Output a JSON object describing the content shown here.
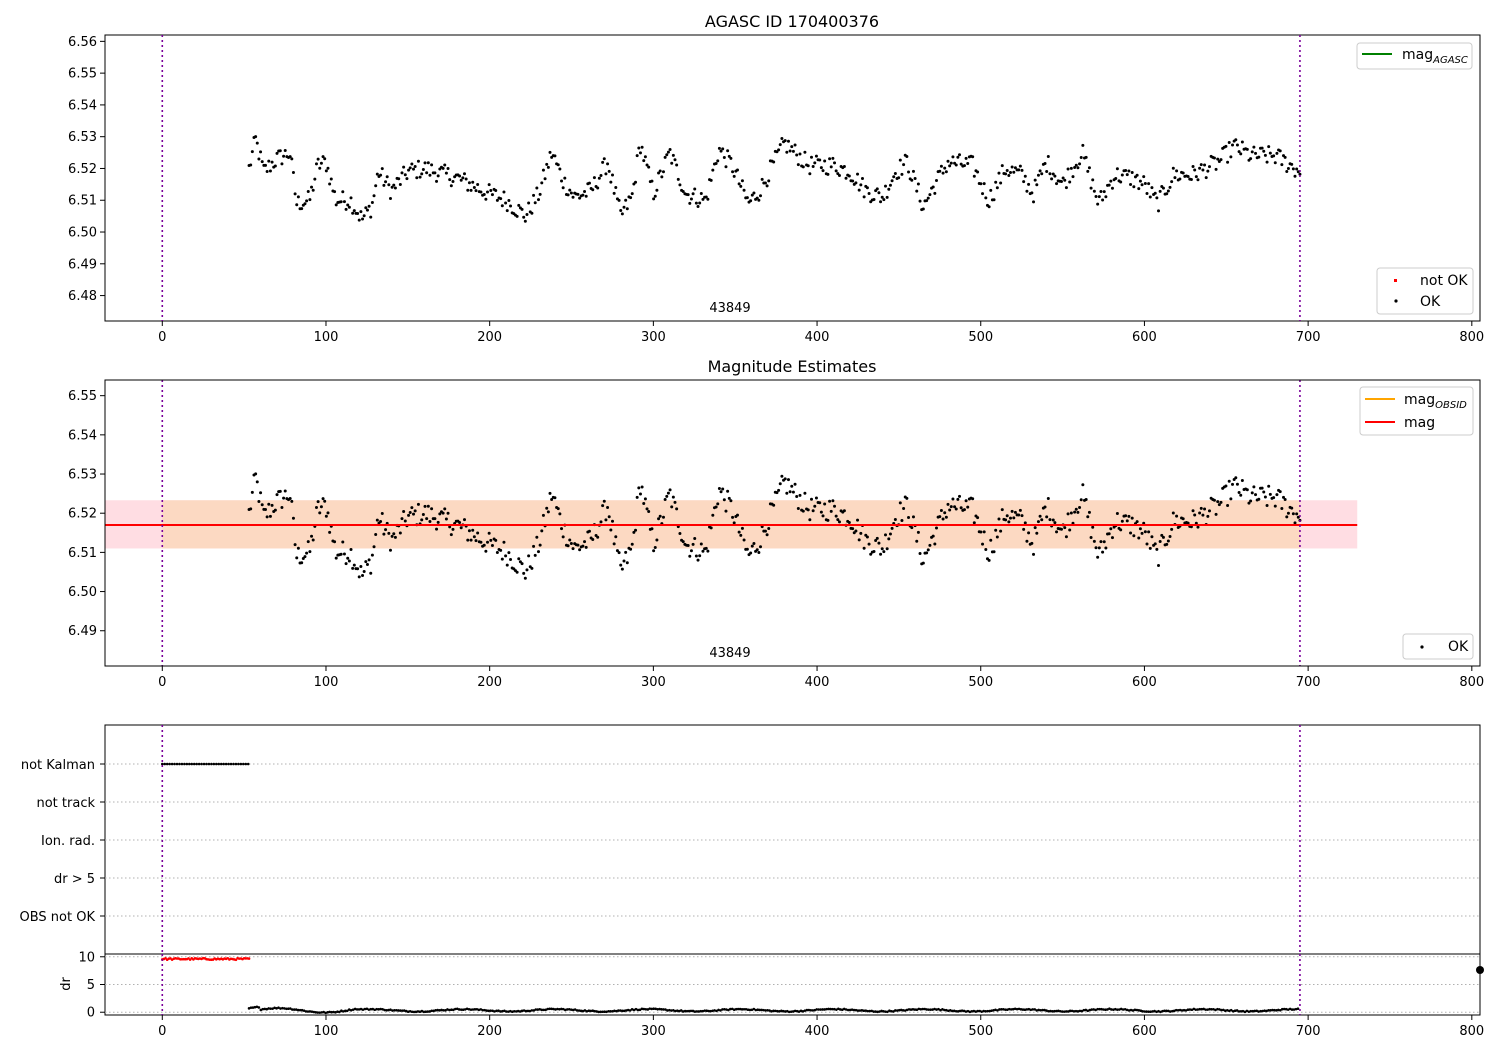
{
  "chart_data": [
    {
      "type": "scatter",
      "title": "AGASC ID 170400376",
      "xlim": [
        -35,
        805
      ],
      "ylim": [
        6.472,
        6.562
      ],
      "xticks": [
        "0",
        "100",
        "200",
        "300",
        "400",
        "500",
        "600",
        "700",
        "800"
      ],
      "yticks": [
        "6.48",
        "6.49",
        "6.50",
        "6.51",
        "6.52",
        "6.53",
        "6.54",
        "6.55",
        "6.56"
      ],
      "vlines": [
        0,
        695
      ],
      "annotation": {
        "text": "43849",
        "x": 347
      },
      "legend_lines": [
        {
          "label": "mag",
          "sub": "AGASC",
          "color": "#008000"
        }
      ],
      "legend_points": [
        {
          "label": "not OK",
          "color": "#ff0000"
        },
        {
          "label": "OK",
          "color": "#000000"
        }
      ],
      "series": [
        {
          "name": "OK",
          "x_range": [
            53,
            695
          ],
          "n": 640,
          "color": "#000000"
        }
      ]
    },
    {
      "type": "scatter",
      "title": "Magnitude Estimates",
      "xlim": [
        -35,
        805
      ],
      "ylim": [
        6.481,
        6.554
      ],
      "xticks": [
        "0",
        "100",
        "200",
        "300",
        "400",
        "500",
        "600",
        "700",
        "800"
      ],
      "yticks": [
        "6.49",
        "6.50",
        "6.51",
        "6.52",
        "6.53",
        "6.54",
        "6.55"
      ],
      "vlines": [
        0,
        695
      ],
      "annotation": {
        "text": "43849",
        "x": 347
      },
      "mag": 6.517,
      "band_outer": {
        "x": [
          -35,
          730
        ],
        "y": [
          6.511,
          6.5233
        ],
        "color": "#ffdde3"
      },
      "band_inner": {
        "x": [
          0,
          695
        ],
        "y": [
          6.511,
          6.5233
        ],
        "color": "#fcd9c2"
      },
      "legend_lines": [
        {
          "label": "mag",
          "sub": "OBSID",
          "color": "#ffa500"
        },
        {
          "label": "mag",
          "sub": "",
          "color": "#ff0000"
        }
      ],
      "legend_points": [
        {
          "label": "OK",
          "color": "#000000"
        }
      ],
      "series": [
        {
          "name": "OK",
          "x_range": [
            53,
            695
          ],
          "n": 640,
          "color": "#000000"
        }
      ]
    },
    {
      "type": "scatter",
      "xlim": [
        -35,
        805
      ],
      "flag_labels": [
        "not Kalman",
        "not track",
        "Ion. rad.",
        "dr > 5",
        "OBS not OK"
      ],
      "flags": {
        "not Kalman": [
          0,
          53
        ]
      },
      "vlines": [
        0,
        695
      ]
    },
    {
      "type": "line",
      "ylabel": "dr",
      "xlim": [
        -35,
        805
      ],
      "ylim": [
        -0.5,
        10.5
      ],
      "xticks": [
        "0",
        "100",
        "200",
        "300",
        "400",
        "500",
        "600",
        "700",
        "800"
      ],
      "yticks": [
        "0",
        "5",
        "10"
      ],
      "vlines": [
        0,
        695
      ],
      "segments": [
        {
          "name": "not OK",
          "x_range": [
            0,
            53
          ],
          "value": 9.6,
          "color": "#ff0000"
        },
        {
          "name": "OK",
          "x_range": [
            53,
            695
          ],
          "value": 0.4,
          "color": "#000000"
        }
      ]
    }
  ]
}
